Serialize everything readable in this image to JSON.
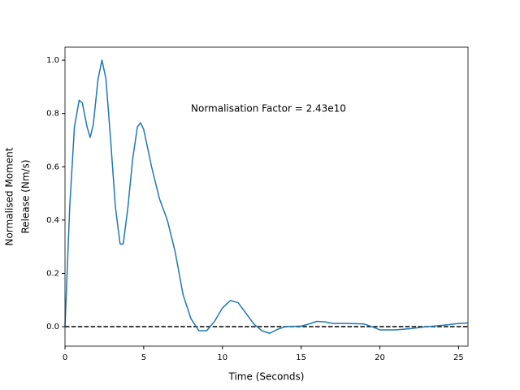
{
  "chart_data": {
    "type": "line",
    "xlabel": "Time (Seconds)",
    "ylabel": [
      "Normalised Moment",
      "Release (Nm/s)"
    ],
    "annotation": "Normalisation Factor = 2.43e10",
    "hline": 0,
    "x": [
      0,
      0.3,
      0.6,
      0.9,
      1.1,
      1.4,
      1.6,
      1.8,
      2.1,
      2.35,
      2.6,
      2.9,
      3.2,
      3.5,
      3.7,
      4.0,
      4.3,
      4.6,
      4.8,
      5.0,
      5.5,
      6.0,
      6.5,
      7.0,
      7.5,
      8.0,
      8.5,
      9.0,
      9.5,
      10.0,
      10.5,
      11.0,
      11.5,
      12.0,
      12.5,
      13.0,
      13.5,
      14.0,
      15.0,
      15.5,
      16.0,
      16.5,
      17.0,
      18.0,
      19.0,
      19.5,
      20.0,
      21.0,
      22.0,
      23.0,
      24.0,
      25.0,
      25.6
    ],
    "series": [
      {
        "name": "Normalised Moment Release",
        "color": "#1f77b4",
        "values": [
          0.0,
          0.45,
          0.75,
          0.85,
          0.84,
          0.75,
          0.71,
          0.76,
          0.93,
          1.0,
          0.93,
          0.7,
          0.45,
          0.31,
          0.31,
          0.45,
          0.63,
          0.75,
          0.765,
          0.74,
          0.6,
          0.48,
          0.4,
          0.28,
          0.12,
          0.03,
          -0.015,
          -0.015,
          0.02,
          0.07,
          0.098,
          0.09,
          0.05,
          0.01,
          -0.015,
          -0.025,
          -0.01,
          0.0,
          0.002,
          0.01,
          0.02,
          0.018,
          0.012,
          0.012,
          0.01,
          0.0,
          -0.012,
          -0.012,
          -0.007,
          0.0,
          0.005,
          0.012,
          0.014
        ]
      }
    ],
    "xlim": [
      0,
      25.6
    ],
    "xticks": [
      0,
      5,
      10,
      15,
      20,
      25
    ],
    "ylim": [
      -0.073,
      1.049
    ],
    "yticks": [
      {
        "value": 0,
        "label": "0.0"
      },
      0.2,
      0.4,
      0.6,
      0.8,
      {
        "value": 1,
        "label": "1.0"
      }
    ]
  }
}
